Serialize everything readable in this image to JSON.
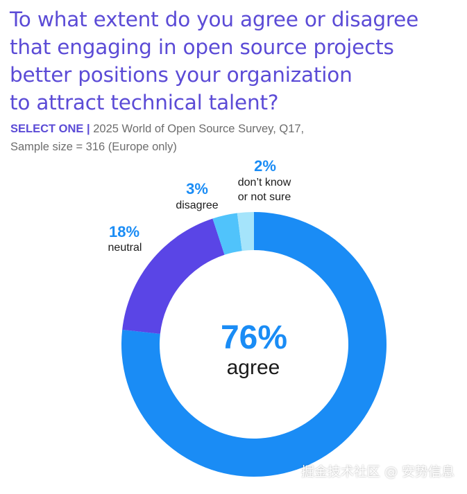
{
  "title": {
    "lines": [
      "To what extent do you agree or disagree",
      "that engaging in open source projects",
      "better positions your organization",
      "to attract technical talent?"
    ]
  },
  "subtitle": {
    "select_label": "SELECT ONE",
    "separator": "|",
    "source": "2025 World of Open Source Survey, Q17,",
    "sample": "Sample size = 316 (Europe only)"
  },
  "chart_data": {
    "type": "pie",
    "variant": "donut",
    "start": "top",
    "direction": "clockwise",
    "center": {
      "value": "76%",
      "label": "agree"
    },
    "slices": [
      {
        "key": "agree",
        "name": "agree",
        "value": 76,
        "value_label": "76%",
        "color": "#1a8cf5"
      },
      {
        "key": "neutral",
        "name": "neutral",
        "value": 18,
        "value_label": "18%",
        "color": "#5a45e6"
      },
      {
        "key": "disagree",
        "name": "disagree",
        "value": 3,
        "value_label": "3%",
        "color": "#50c3fb"
      },
      {
        "key": "dont_know",
        "name": "don’t know or not sure",
        "name_lines": [
          "don’t know",
          "or not sure"
        ],
        "value": 2,
        "value_label": "2%",
        "color": "#a5e4fb"
      }
    ]
  },
  "colors": {
    "title": "#5b4bd6",
    "subtitle": "#6d6d6d",
    "value_label": "#1a8cf5",
    "category_label": "#1a1a1a"
  },
  "watermark": "掘金技术社区 @ 安势信息"
}
